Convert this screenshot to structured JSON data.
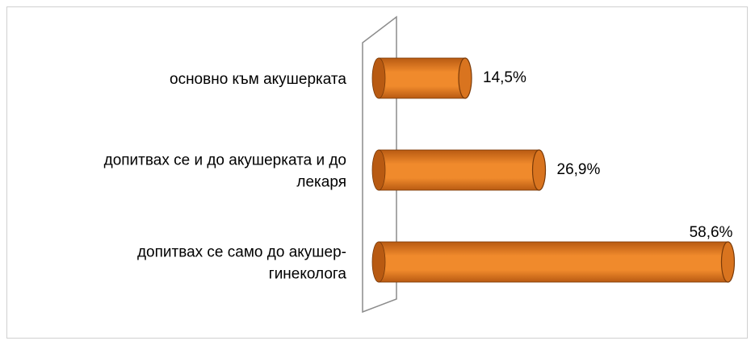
{
  "chart_data": {
    "type": "bar",
    "orientation": "horizontal",
    "style": "3d-cylinder",
    "categories": [
      "основно към акушерката",
      "допитвах се и до акушерката и до лекаря",
      "допитвах се само до акушер-гинеколога"
    ],
    "category_lines": [
      [
        "основно към акушерката"
      ],
      [
        "допитвах се и до акушерката и до",
        "лекаря"
      ],
      [
        "допитвах се само до акушер-",
        "гинеколога"
      ]
    ],
    "values": [
      14.5,
      26.9,
      58.6
    ],
    "value_labels": [
      "14,5%",
      "26,9%",
      "58,6%"
    ],
    "xlim": [
      0,
      60
    ],
    "grid": false,
    "legend": "none",
    "colors": {
      "bar_fill": "#f08a2c",
      "bar_dark": "#b85a12",
      "bar_end": "#d9741f",
      "bar_outline": "#7a3a08",
      "wall_stroke": "#8c8c8c"
    }
  }
}
